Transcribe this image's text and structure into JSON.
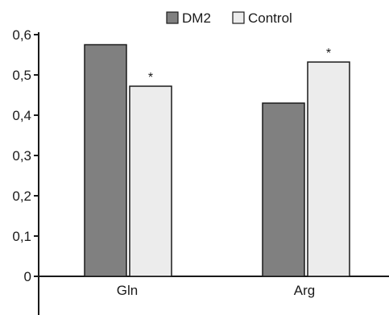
{
  "chart_data": {
    "type": "bar",
    "categories": [
      "Gln",
      "Arg"
    ],
    "series": [
      {
        "name": "DM2",
        "values": [
          0.575,
          0.43
        ],
        "color": "#808080"
      },
      {
        "name": "Control",
        "values": [
          0.472,
          0.532
        ],
        "color": "#ececec"
      }
    ],
    "annotations": [
      {
        "category": "Gln",
        "series": "Control",
        "text": "*"
      },
      {
        "category": "Arg",
        "series": "Control",
        "text": "*"
      }
    ],
    "ylim": [
      0,
      0.6
    ],
    "yticks": [
      "0",
      "0,1",
      "0,2",
      "0,3",
      "0,4",
      "0,5",
      "0,6"
    ],
    "title": "",
    "xlabel": "",
    "ylabel": "",
    "legend_position": "top-center",
    "grid": false
  }
}
